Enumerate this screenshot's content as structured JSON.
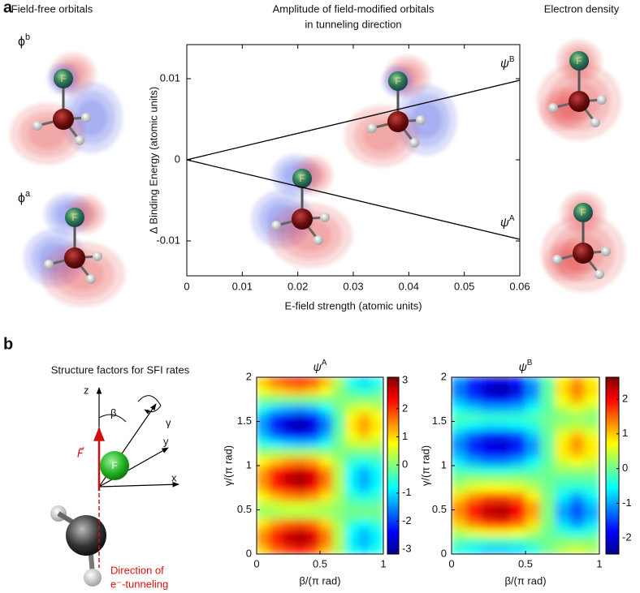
{
  "figure": {
    "panel_labels": [
      "a",
      "b"
    ],
    "left_heading": "Field-free orbitals",
    "center_heading": [
      "Amplitude of field-modified orbitals",
      "in tunneling direction"
    ],
    "right_heading": "Electron density",
    "orbital_labels": [
      {
        "base": "ϕ",
        "sup": "b"
      },
      {
        "base": "ϕ",
        "sup": "a"
      }
    ],
    "atom_label": "F",
    "schematic": {
      "title": "Structure factors for SFI rates",
      "axis_labels": [
        "z",
        "y",
        "x"
      ],
      "angle_labels": [
        "β",
        "γ"
      ],
      "field_label": "F⃗",
      "caption": [
        "Direction of",
        "e⁻-tunneling"
      ]
    }
  },
  "chart_data": [
    {
      "type": "line",
      "xlabel": "E-field strength (atomic units)",
      "ylabel": "Δ Binding Energy (atomic units)",
      "x": [
        0,
        0.06
      ],
      "series": [
        {
          "symbol": "ψ",
          "name": "B",
          "color": "#000000",
          "values": [
            0,
            0.0098
          ]
        },
        {
          "symbol": "ψ",
          "name": "A",
          "color": "#000000",
          "values": [
            0,
            -0.0098
          ]
        }
      ],
      "xlim": [
        0,
        0.06
      ],
      "ylim": [
        -0.0143,
        0.0142
      ],
      "xticks": [
        0,
        0.01,
        0.02,
        0.03,
        0.04,
        0.05,
        0.06
      ],
      "yticks": [
        -0.01,
        0,
        0.01
      ]
    },
    {
      "type": "heatmap",
      "title_symbol": "ψ",
      "title_sup": "A",
      "xlabel": "β/(π rad)",
      "ylabel": "γ/(π rad)",
      "colormap": "jet",
      "x": [
        0.05,
        0.15,
        0.25,
        0.35,
        0.45,
        0.55,
        0.65,
        0.75,
        0.85,
        0.95
      ],
      "y": [
        0.05,
        0.15,
        0.25,
        0.35,
        0.45,
        0.55,
        0.65,
        0.75,
        0.85,
        0.95,
        1.05,
        1.15,
        1.25,
        1.35,
        1.45,
        1.55,
        1.65,
        1.75,
        1.85,
        1.95
      ],
      "z": [
        [
          1.1,
          1.7,
          2.0,
          2.2,
          1.9,
          1.2,
          0.2,
          -0.7,
          -1.0,
          -0.7
        ],
        [
          1.5,
          2.2,
          2.7,
          2.9,
          2.6,
          1.6,
          0.3,
          -0.9,
          -1.3,
          -0.9
        ],
        [
          1.4,
          2.0,
          2.5,
          2.7,
          2.4,
          1.5,
          0.3,
          -0.8,
          -1.2,
          -0.8
        ],
        [
          0.9,
          1.4,
          1.7,
          1.8,
          1.6,
          1.0,
          0.2,
          -0.5,
          -0.8,
          -0.5
        ],
        [
          0.2,
          0.2,
          0.3,
          0.3,
          0.3,
          0.2,
          0.0,
          -0.1,
          -0.1,
          -0.1
        ],
        [
          0.3,
          0.4,
          0.5,
          0.5,
          0.4,
          0.3,
          0.1,
          -0.2,
          -0.2,
          -0.2
        ],
        [
          0.8,
          1.2,
          1.5,
          1.6,
          1.4,
          0.9,
          0.2,
          -0.5,
          -0.7,
          -0.5
        ],
        [
          1.3,
          2.0,
          2.4,
          2.6,
          2.3,
          1.4,
          0.3,
          -0.8,
          -1.2,
          -0.8
        ],
        [
          1.5,
          2.3,
          2.8,
          3.0,
          2.6,
          1.7,
          0.3,
          -0.9,
          -1.4,
          -0.9
        ],
        [
          1.3,
          2.0,
          2.4,
          2.6,
          2.3,
          1.4,
          0.3,
          -0.8,
          -1.2,
          -0.8
        ],
        [
          0.8,
          1.1,
          1.4,
          1.5,
          1.3,
          0.8,
          0.2,
          -0.5,
          -0.7,
          -0.5
        ],
        [
          0.1,
          0.2,
          0.2,
          0.2,
          0.2,
          0.1,
          0.0,
          -0.1,
          -0.1,
          -0.1
        ],
        [
          -0.6,
          -0.9,
          -1.1,
          -1.2,
          -1.1,
          -0.7,
          -0.1,
          0.4,
          0.5,
          0.4
        ],
        [
          -1.2,
          -1.8,
          -2.2,
          -2.4,
          -2.1,
          -1.3,
          -0.2,
          0.7,
          1.1,
          0.7
        ],
        [
          -1.5,
          -2.3,
          -2.8,
          -3.0,
          -2.6,
          -1.7,
          -0.3,
          0.9,
          1.4,
          0.9
        ],
        [
          -1.3,
          -2.0,
          -2.4,
          -2.6,
          -2.3,
          -1.4,
          -0.3,
          0.8,
          1.2,
          0.8
        ],
        [
          -0.7,
          -1.1,
          -1.3,
          -1.4,
          -1.2,
          -0.8,
          -0.1,
          0.4,
          0.6,
          0.4
        ],
        [
          0.0,
          0.0,
          0.0,
          0.0,
          0.0,
          0.0,
          0.0,
          0.0,
          0.0,
          0.0
        ],
        [
          0.7,
          1.0,
          1.2,
          1.3,
          1.1,
          0.7,
          0.1,
          -0.4,
          -0.6,
          -0.4
        ],
        [
          1.1,
          1.7,
          2.0,
          2.2,
          1.9,
          1.2,
          0.2,
          -0.7,
          -1.0,
          -0.7
        ]
      ],
      "xlim": [
        0,
        1
      ],
      "ylim": [
        0,
        2
      ],
      "xticks": [
        0,
        0.5,
        1
      ],
      "yticks": [
        0,
        0.5,
        1,
        1.5,
        2
      ],
      "clim": [
        -3.17,
        3.12
      ],
      "cticks": [
        -3,
        -2,
        -1,
        0,
        1,
        2,
        3
      ]
    },
    {
      "type": "heatmap",
      "title_symbol": "ψ",
      "title_sup": "B",
      "xlabel": "β/(π rad)",
      "ylabel": "γ/(π rad)",
      "colormap": "jet",
      "x": [
        0.05,
        0.15,
        0.25,
        0.35,
        0.45,
        0.55,
        0.65,
        0.75,
        0.85,
        0.95
      ],
      "y": [
        0.05,
        0.15,
        0.25,
        0.35,
        0.45,
        0.55,
        0.65,
        0.75,
        0.85,
        0.95,
        1.05,
        1.15,
        1.25,
        1.35,
        1.45,
        1.55,
        1.65,
        1.75,
        1.85,
        1.95
      ],
      "z": [
        [
          -0.4,
          -0.6,
          -0.8,
          -0.8,
          -0.7,
          -0.4,
          0.0,
          0.3,
          0.5,
          0.3
        ],
        [
          -0.1,
          -0.2,
          -0.2,
          -0.2,
          -0.2,
          -0.1,
          0.0,
          0.1,
          0.1,
          0.1
        ],
        [
          0.4,
          0.6,
          0.8,
          0.8,
          0.7,
          0.4,
          0.0,
          -0.3,
          -0.5,
          -0.3
        ],
        [
          1.0,
          1.4,
          1.7,
          1.8,
          1.5,
          0.9,
          0.1,
          -0.7,
          -1.1,
          -0.7
        ],
        [
          1.3,
          1.9,
          2.3,
          2.4,
          2.0,
          1.2,
          0.1,
          -1.0,
          -1.4,
          -1.0
        ],
        [
          1.3,
          1.8,
          2.2,
          2.3,
          2.0,
          1.2,
          0.1,
          -0.9,
          -1.4,
          -0.9
        ],
        [
          0.9,
          1.3,
          1.6,
          1.6,
          1.4,
          0.8,
          0.1,
          -0.6,
          -1.0,
          -0.6
        ],
        [
          0.4,
          0.6,
          0.7,
          0.7,
          0.6,
          0.4,
          0.0,
          -0.3,
          -0.4,
          -0.3
        ],
        [
          0.1,
          0.2,
          0.2,
          0.2,
          0.2,
          0.1,
          0.0,
          -0.1,
          -0.1,
          -0.1
        ],
        [
          -0.2,
          -0.3,
          -0.4,
          -0.4,
          -0.3,
          -0.2,
          0.0,
          0.2,
          0.2,
          0.2
        ],
        [
          -0.7,
          -1.0,
          -1.2,
          -1.2,
          -1.0,
          -0.6,
          -0.1,
          0.5,
          0.7,
          0.5
        ],
        [
          -1.0,
          -1.5,
          -1.8,
          -1.9,
          -1.6,
          -1.0,
          -0.1,
          0.8,
          1.1,
          0.8
        ],
        [
          -1.2,
          -1.7,
          -2.0,
          -2.1,
          -1.8,
          -1.1,
          -0.1,
          0.8,
          1.3,
          0.8
        ],
        [
          -0.9,
          -1.3,
          -1.6,
          -1.6,
          -1.4,
          -0.8,
          -0.1,
          0.6,
          1.0,
          0.6
        ],
        [
          -0.4,
          -0.6,
          -0.7,
          -0.7,
          -0.6,
          -0.4,
          0.0,
          0.3,
          0.4,
          0.3
        ],
        [
          -0.2,
          -0.2,
          -0.3,
          -0.3,
          -0.3,
          -0.2,
          0.0,
          0.1,
          0.2,
          0.1
        ],
        [
          -0.6,
          -0.8,
          -1.0,
          -1.0,
          -0.9,
          -0.5,
          -0.1,
          0.4,
          0.6,
          0.4
        ],
        [
          -1.0,
          -1.4,
          -1.7,
          -1.8,
          -1.5,
          -0.9,
          -0.1,
          0.7,
          1.1,
          0.7
        ],
        [
          -1.3,
          -1.8,
          -2.2,
          -2.3,
          -2.0,
          -1.2,
          -0.1,
          0.9,
          1.4,
          0.9
        ],
        [
          -1.1,
          -1.6,
          -1.9,
          -2.0,
          -1.7,
          -1.0,
          -0.1,
          0.8,
          1.2,
          0.8
        ]
      ],
      "xlim": [
        0,
        1
      ],
      "ylim": [
        0,
        2
      ],
      "xticks": [
        0,
        0.5,
        1
      ],
      "yticks": [
        0,
        0.5,
        1,
        1.5,
        2
      ],
      "clim": [
        -2.46,
        2.63
      ],
      "cticks": [
        -2,
        -1,
        0,
        1,
        2
      ]
    }
  ]
}
